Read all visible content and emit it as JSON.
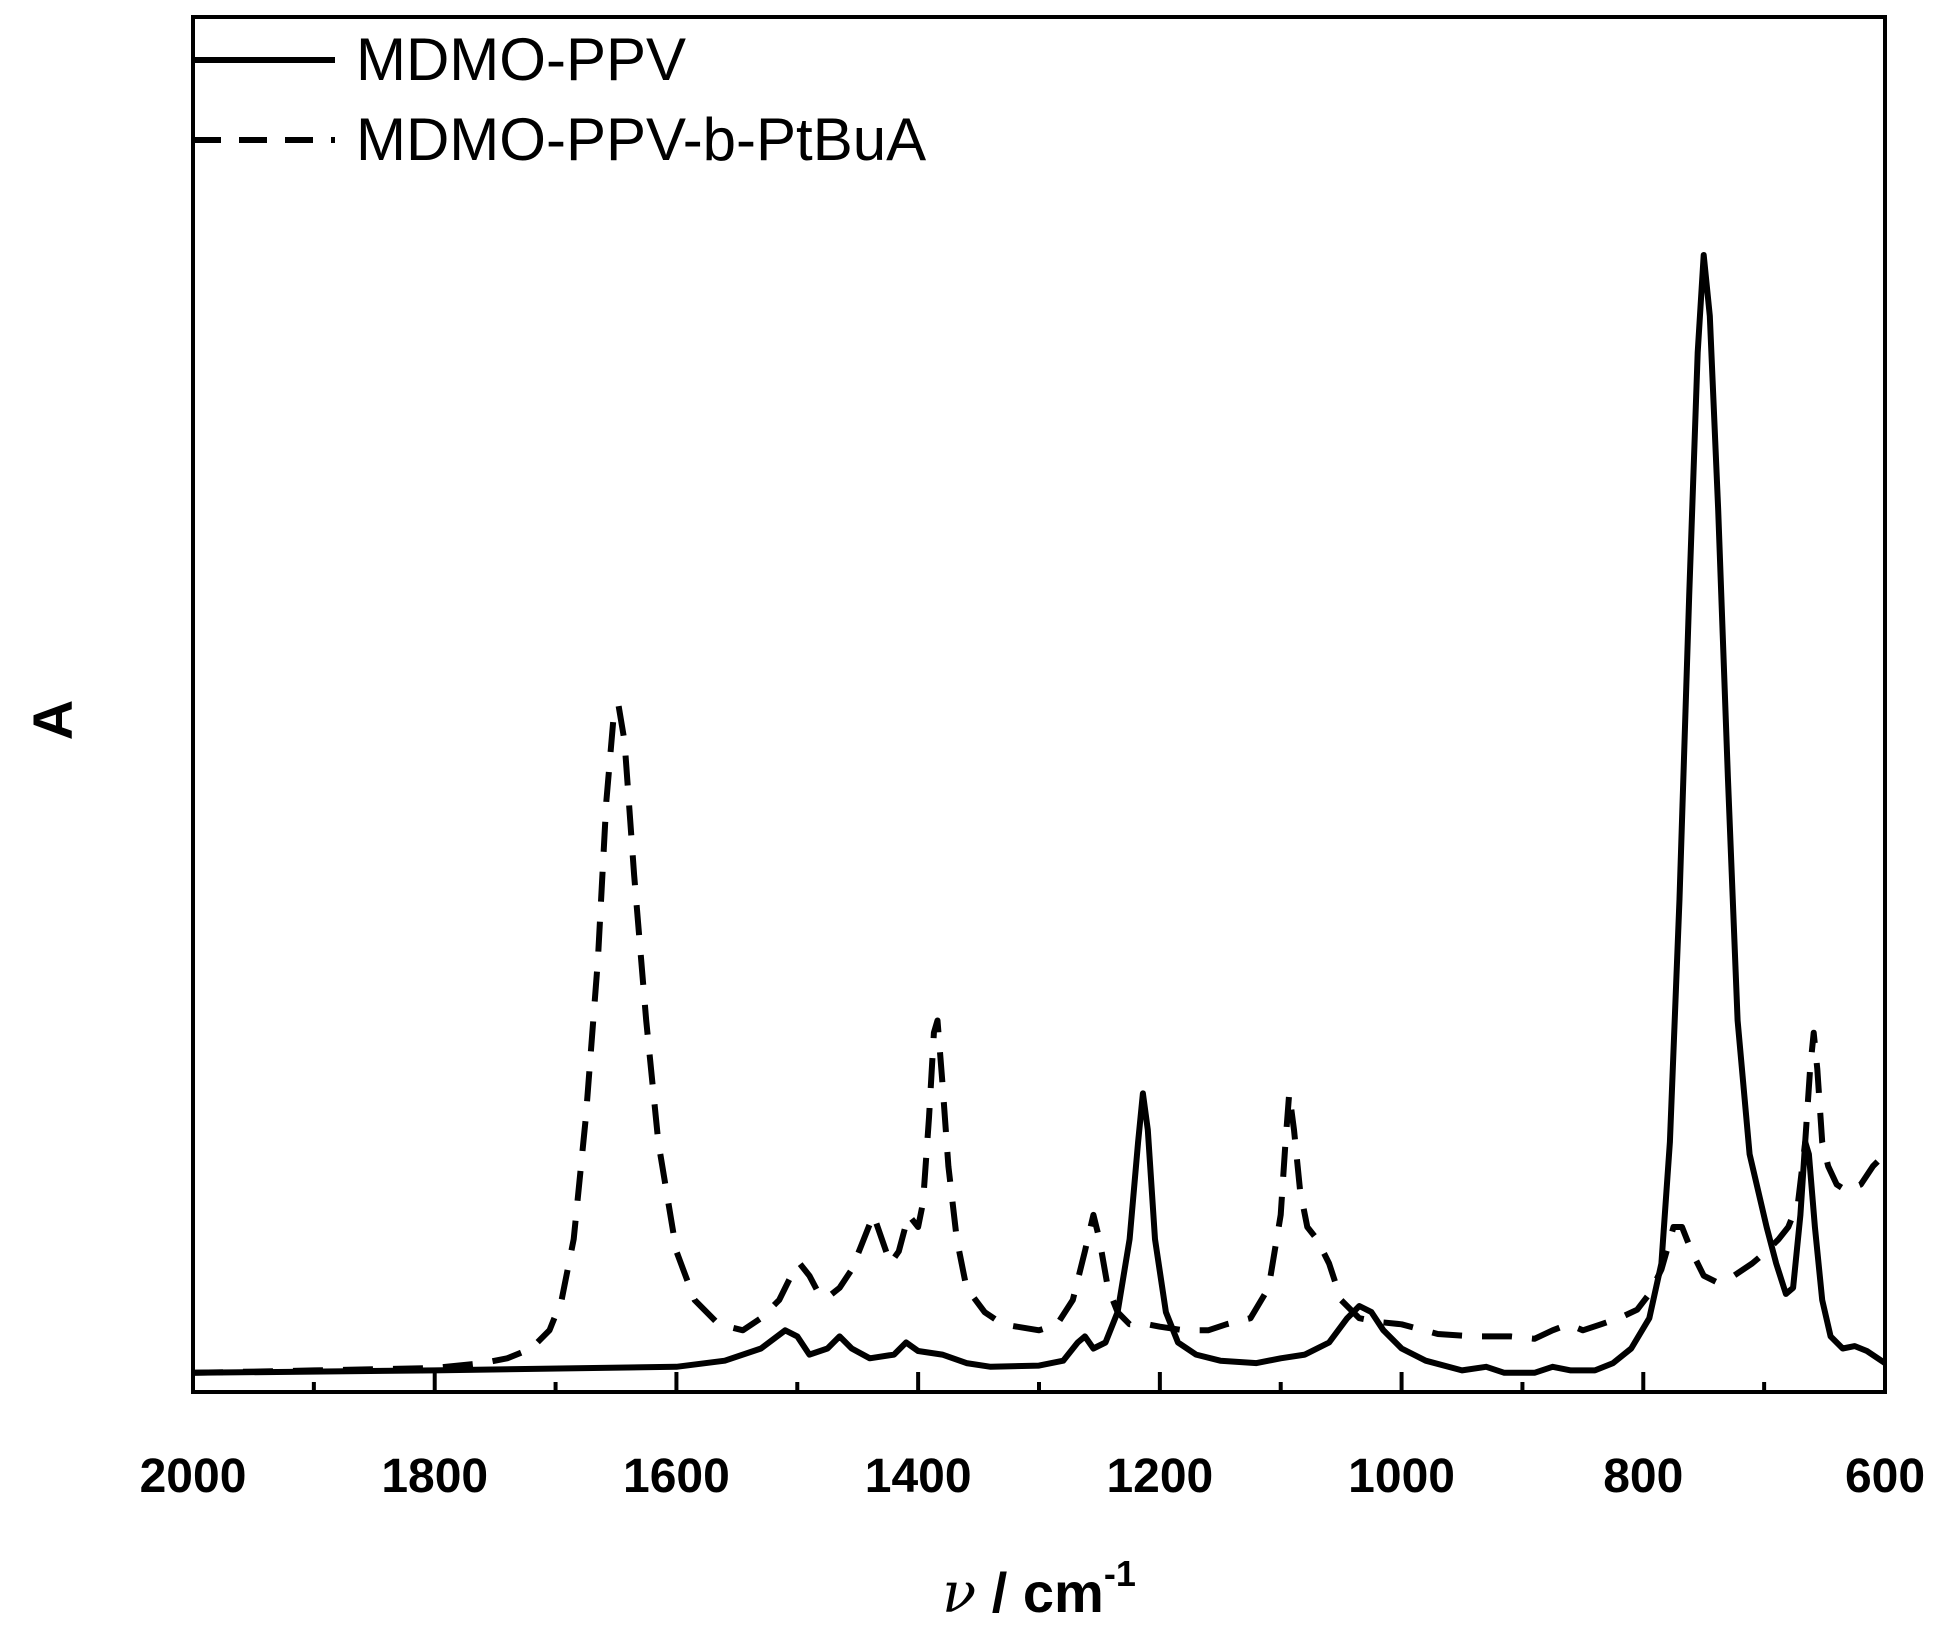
{
  "chart_data": {
    "type": "line",
    "title": "",
    "xlabel": {
      "symbol": "ν",
      "text": " / cm",
      "superscript": "-1"
    },
    "ylabel": "A",
    "xlim": [
      2000,
      600
    ],
    "ylim": [
      0,
      1
    ],
    "x_reversed": true,
    "x_ticks": [
      2000,
      1800,
      1600,
      1400,
      1200,
      1000,
      800,
      600
    ],
    "x_tick_labels": [
      "2000",
      "1800",
      "1600",
      "1400",
      "1200",
      "1000",
      "800",
      "600"
    ],
    "y_ticks_visible": false,
    "grid": false,
    "legend_position": "top-left",
    "series": [
      {
        "name": "MDMO-PPV",
        "style": "solid",
        "color": "#000000",
        "points": [
          [
            2000,
            0.01
          ],
          [
            1800,
            0.012
          ],
          [
            1600,
            0.015
          ],
          [
            1560,
            0.02
          ],
          [
            1530,
            0.03
          ],
          [
            1510,
            0.045
          ],
          [
            1500,
            0.04
          ],
          [
            1490,
            0.025
          ],
          [
            1475,
            0.03
          ],
          [
            1465,
            0.04
          ],
          [
            1455,
            0.03
          ],
          [
            1440,
            0.022
          ],
          [
            1420,
            0.025
          ],
          [
            1410,
            0.035
          ],
          [
            1400,
            0.028
          ],
          [
            1380,
            0.025
          ],
          [
            1360,
            0.018
          ],
          [
            1340,
            0.015
          ],
          [
            1300,
            0.016
          ],
          [
            1280,
            0.02
          ],
          [
            1268,
            0.035
          ],
          [
            1262,
            0.04
          ],
          [
            1255,
            0.03
          ],
          [
            1245,
            0.035
          ],
          [
            1235,
            0.06
          ],
          [
            1225,
            0.12
          ],
          [
            1218,
            0.2
          ],
          [
            1214,
            0.24
          ],
          [
            1210,
            0.21
          ],
          [
            1204,
            0.12
          ],
          [
            1195,
            0.06
          ],
          [
            1185,
            0.035
          ],
          [
            1170,
            0.025
          ],
          [
            1150,
            0.02
          ],
          [
            1120,
            0.018
          ],
          [
            1100,
            0.022
          ],
          [
            1080,
            0.025
          ],
          [
            1060,
            0.035
          ],
          [
            1045,
            0.055
          ],
          [
            1035,
            0.065
          ],
          [
            1025,
            0.06
          ],
          [
            1015,
            0.045
          ],
          [
            1000,
            0.03
          ],
          [
            980,
            0.02
          ],
          [
            950,
            0.012
          ],
          [
            930,
            0.015
          ],
          [
            915,
            0.01
          ],
          [
            890,
            0.01
          ],
          [
            875,
            0.015
          ],
          [
            860,
            0.012
          ],
          [
            840,
            0.012
          ],
          [
            825,
            0.018
          ],
          [
            810,
            0.03
          ],
          [
            795,
            0.055
          ],
          [
            785,
            0.1
          ],
          [
            778,
            0.2
          ],
          [
            770,
            0.4
          ],
          [
            762,
            0.65
          ],
          [
            755,
            0.85
          ],
          [
            750,
            0.93
          ],
          [
            745,
            0.88
          ],
          [
            738,
            0.72
          ],
          [
            730,
            0.5
          ],
          [
            722,
            0.3
          ],
          [
            712,
            0.19
          ],
          [
            705,
            0.16
          ],
          [
            698,
            0.13
          ],
          [
            690,
            0.1
          ],
          [
            682,
            0.075
          ],
          [
            676,
            0.08
          ],
          [
            670,
            0.14
          ],
          [
            666,
            0.2
          ],
          [
            663,
            0.19
          ],
          [
            658,
            0.13
          ],
          [
            652,
            0.07
          ],
          [
            645,
            0.04
          ],
          [
            635,
            0.03
          ],
          [
            625,
            0.032
          ],
          [
            615,
            0.028
          ],
          [
            600,
            0.018
          ]
        ]
      },
      {
        "name": "MDMO-PPV-b-PtBuA",
        "style": "dashed",
        "color": "#000000",
        "points": [
          [
            2000,
            0.01
          ],
          [
            1900,
            0.012
          ],
          [
            1800,
            0.014
          ],
          [
            1760,
            0.018
          ],
          [
            1740,
            0.022
          ],
          [
            1720,
            0.03
          ],
          [
            1705,
            0.045
          ],
          [
            1695,
            0.07
          ],
          [
            1685,
            0.12
          ],
          [
            1675,
            0.22
          ],
          [
            1665,
            0.35
          ],
          [
            1658,
            0.48
          ],
          [
            1652,
            0.55
          ],
          [
            1648,
            0.56
          ],
          [
            1643,
            0.53
          ],
          [
            1635,
            0.42
          ],
          [
            1625,
            0.3
          ],
          [
            1615,
            0.2
          ],
          [
            1600,
            0.11
          ],
          [
            1585,
            0.07
          ],
          [
            1565,
            0.05
          ],
          [
            1545,
            0.045
          ],
          [
            1530,
            0.055
          ],
          [
            1515,
            0.07
          ],
          [
            1505,
            0.09
          ],
          [
            1498,
            0.1
          ],
          [
            1490,
            0.09
          ],
          [
            1482,
            0.075
          ],
          [
            1475,
            0.072
          ],
          [
            1465,
            0.08
          ],
          [
            1455,
            0.095
          ],
          [
            1445,
            0.12
          ],
          [
            1437,
            0.14
          ],
          [
            1430,
            0.12
          ],
          [
            1423,
            0.1
          ],
          [
            1416,
            0.11
          ],
          [
            1408,
            0.14
          ],
          [
            1400,
            0.13
          ],
          [
            1396,
            0.15
          ],
          [
            1391,
            0.22
          ],
          [
            1387,
            0.29
          ],
          [
            1384,
            0.3
          ],
          [
            1380,
            0.25
          ],
          [
            1375,
            0.18
          ],
          [
            1368,
            0.12
          ],
          [
            1360,
            0.08
          ],
          [
            1345,
            0.06
          ],
          [
            1330,
            0.05
          ],
          [
            1300,
            0.045
          ],
          [
            1285,
            0.05
          ],
          [
            1272,
            0.07
          ],
          [
            1262,
            0.11
          ],
          [
            1255,
            0.14
          ],
          [
            1250,
            0.12
          ],
          [
            1243,
            0.08
          ],
          [
            1235,
            0.06
          ],
          [
            1225,
            0.05
          ],
          [
            1210,
            0.05
          ],
          [
            1200,
            0.048
          ],
          [
            1180,
            0.045
          ],
          [
            1160,
            0.045
          ],
          [
            1145,
            0.05
          ],
          [
            1125,
            0.055
          ],
          [
            1110,
            0.08
          ],
          [
            1100,
            0.14
          ],
          [
            1096,
            0.2
          ],
          [
            1093,
            0.24
          ],
          [
            1089,
            0.21
          ],
          [
            1084,
            0.16
          ],
          [
            1078,
            0.13
          ],
          [
            1070,
            0.12
          ],
          [
            1060,
            0.1
          ],
          [
            1050,
            0.07
          ],
          [
            1035,
            0.055
          ],
          [
            1020,
            0.052
          ],
          [
            1000,
            0.05
          ],
          [
            970,
            0.042
          ],
          [
            940,
            0.04
          ],
          [
            910,
            0.04
          ],
          [
            890,
            0.038
          ],
          [
            875,
            0.045
          ],
          [
            862,
            0.05
          ],
          [
            850,
            0.045
          ],
          [
            835,
            0.05
          ],
          [
            820,
            0.055
          ],
          [
            805,
            0.062
          ],
          [
            795,
            0.075
          ],
          [
            785,
            0.095
          ],
          [
            775,
            0.13
          ],
          [
            768,
            0.13
          ],
          [
            760,
            0.11
          ],
          [
            750,
            0.09
          ],
          [
            740,
            0.085
          ],
          [
            725,
            0.09
          ],
          [
            710,
            0.1
          ],
          [
            698,
            0.11
          ],
          [
            688,
            0.12
          ],
          [
            680,
            0.13
          ],
          [
            672,
            0.15
          ],
          [
            666,
            0.2
          ],
          [
            662,
            0.26
          ],
          [
            659,
            0.29
          ],
          [
            656,
            0.26
          ],
          [
            652,
            0.2
          ],
          [
            647,
            0.18
          ],
          [
            640,
            0.165
          ],
          [
            632,
            0.16
          ],
          [
            620,
            0.165
          ],
          [
            610,
            0.18
          ],
          [
            600,
            0.19
          ]
        ]
      }
    ]
  }
}
